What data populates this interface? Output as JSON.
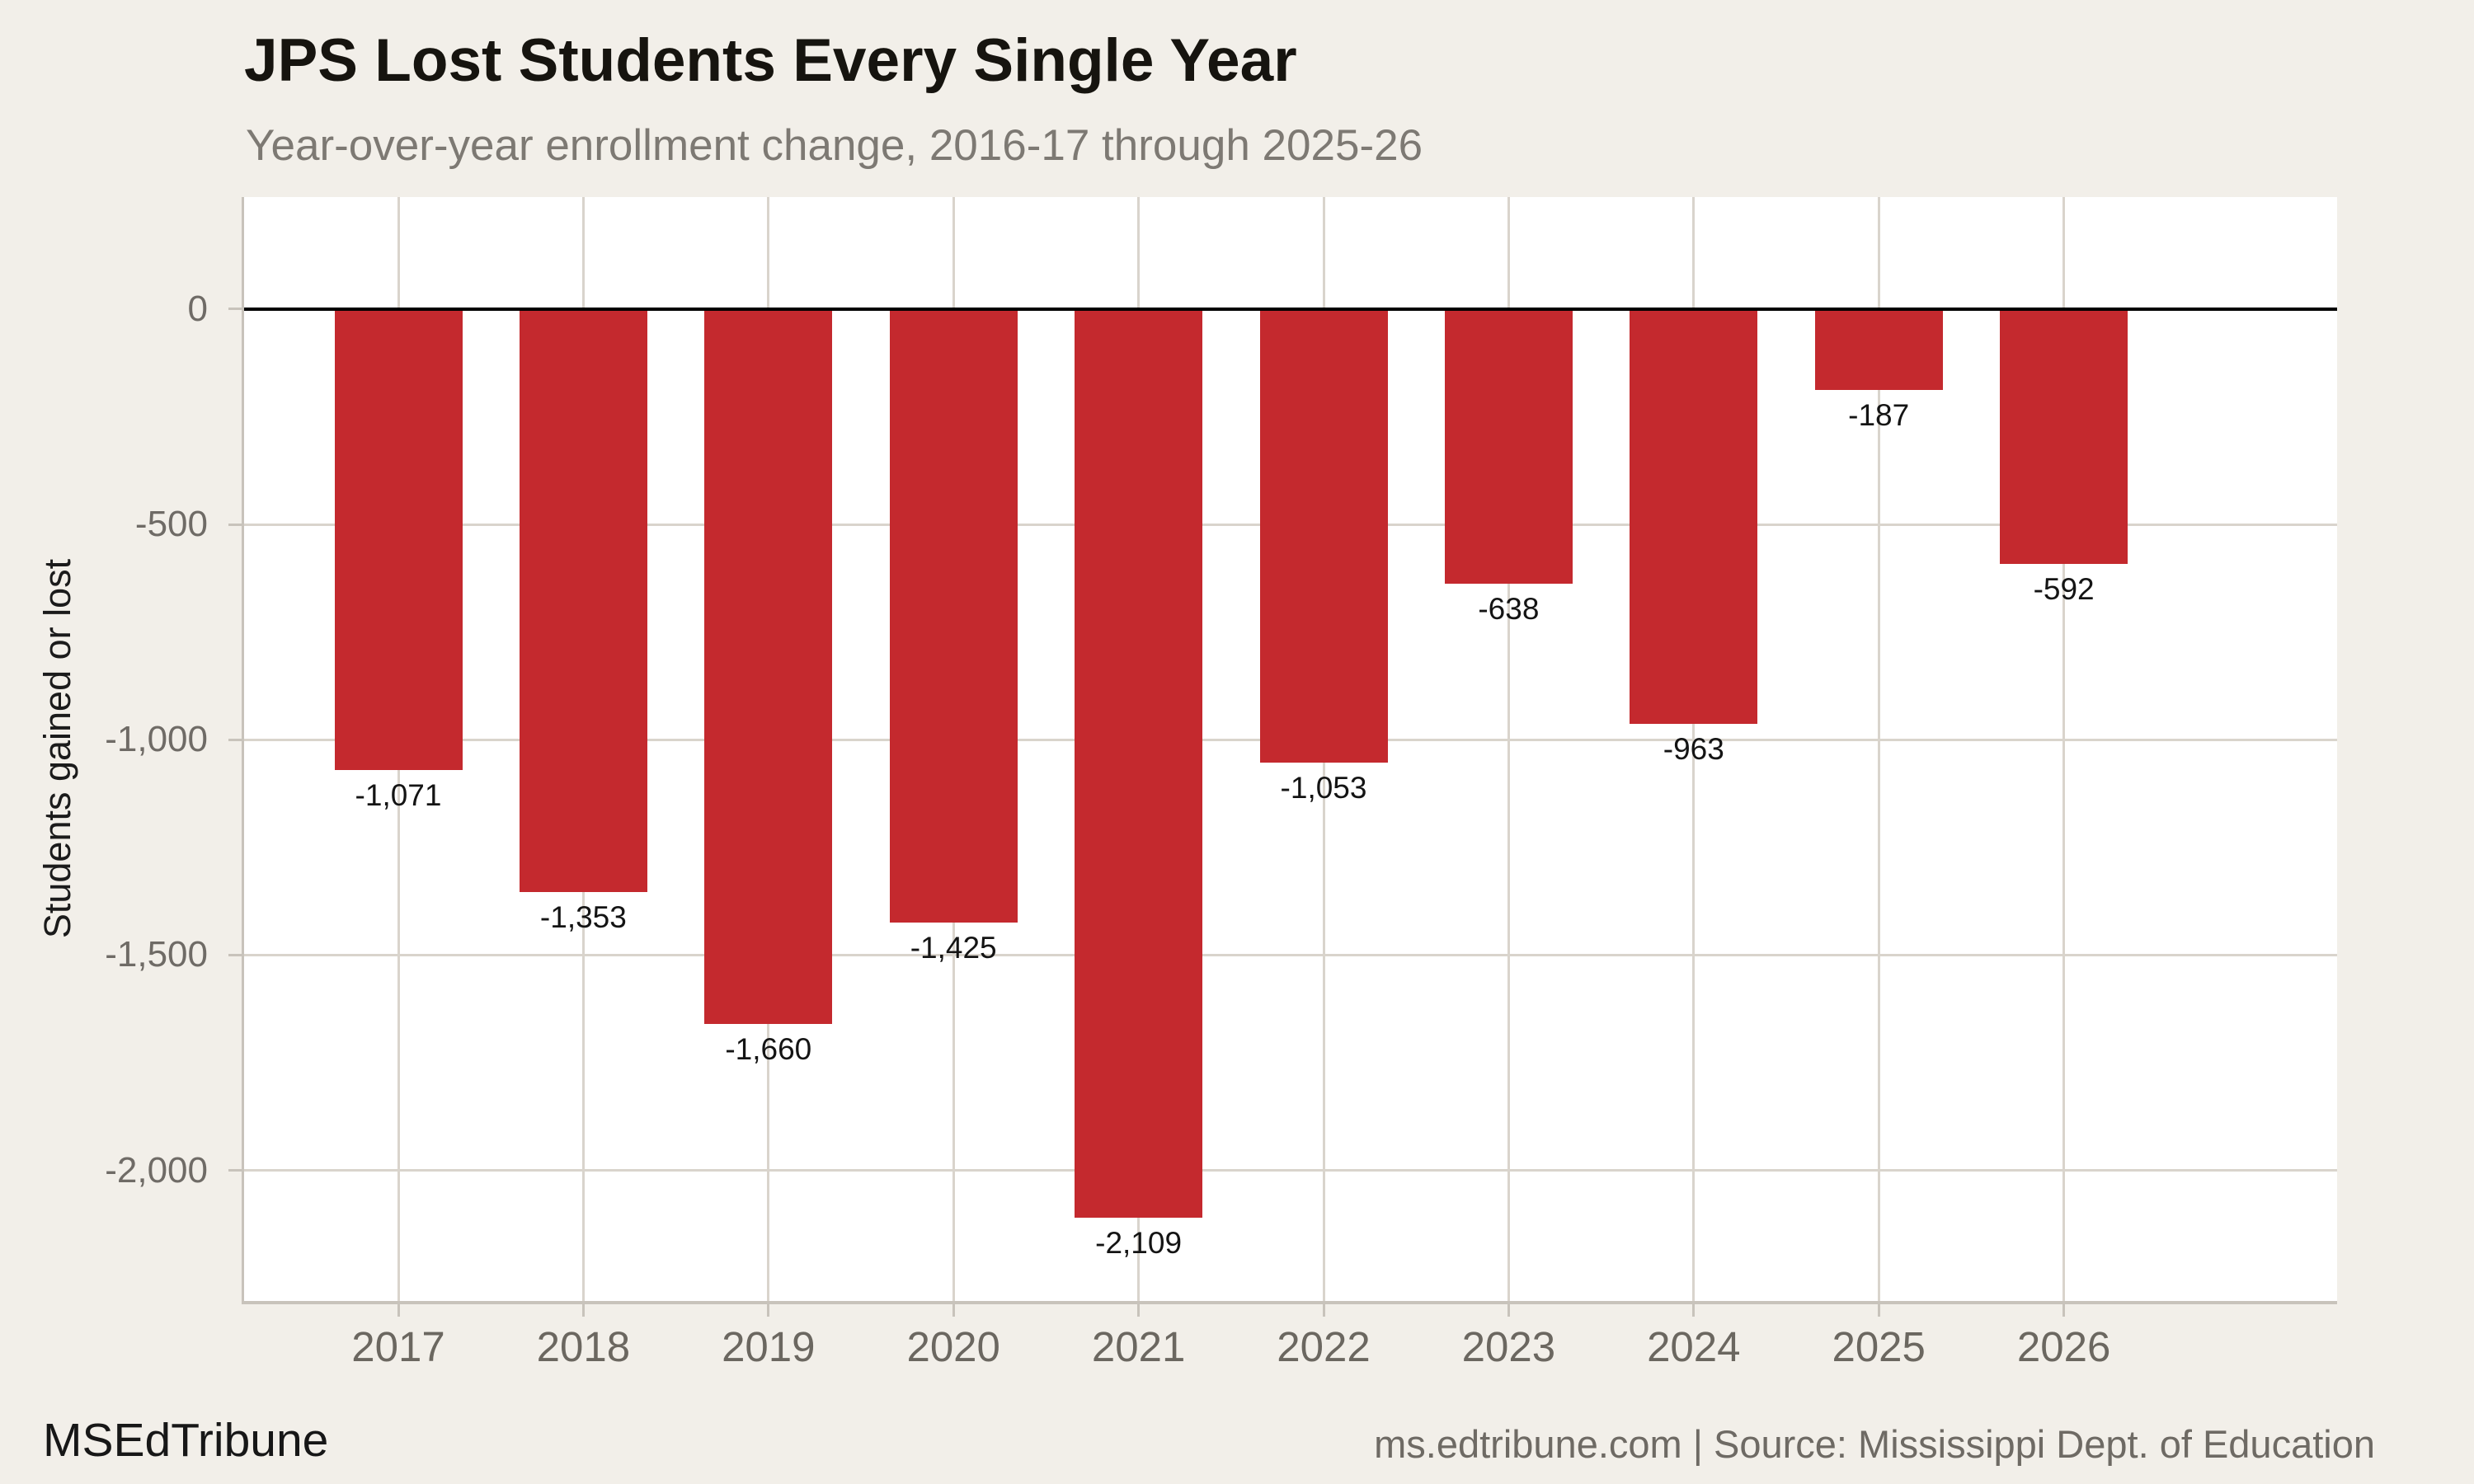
{
  "header": {
    "title": "JPS Lost Students Every Single Year",
    "subtitle": "Year-over-year enrollment change, 2016-17 through 2025-26"
  },
  "footer": {
    "brand": "MSEdTribune",
    "source": "ms.edtribune.com | Source: Mississippi Dept. of Education"
  },
  "chart_data": {
    "type": "bar",
    "title": "JPS Lost Students Every Single Year",
    "subtitle": "Year-over-year enrollment change, 2016-17 through 2025-26",
    "categories": [
      "2017",
      "2018",
      "2019",
      "2020",
      "2021",
      "2022",
      "2023",
      "2024",
      "2025",
      "2026"
    ],
    "values": [
      -1071,
      -1353,
      -1660,
      -1425,
      -2109,
      -1053,
      -638,
      -963,
      -187,
      -592
    ],
    "bar_labels": [
      "-1,071",
      "-1,353",
      "-1,660",
      "-1,425",
      "-2,109",
      "-1,053",
      "-638",
      "-963",
      "-187",
      "-592"
    ],
    "xlabel": "",
    "ylabel": "Students gained or lost",
    "ylim": [
      260,
      -2303
    ],
    "yticks": [
      {
        "value": 0,
        "label": "0"
      },
      {
        "value": -500,
        "label": "-500"
      },
      {
        "value": -1000,
        "label": "-1,000"
      },
      {
        "value": -1500,
        "label": "-1,500"
      },
      {
        "value": -2000,
        "label": "-2,000"
      }
    ],
    "grid": "on",
    "legend": "none",
    "colors": {
      "bar": "#c4292e",
      "background": "#f2efe9",
      "plot_background": "#ffffff",
      "grid": "#d9d4cc",
      "axis_line": "#c8c3bb",
      "zero_line": "#000000",
      "title": "#16140f",
      "subtitle": "#7d7973",
      "tick_label": "#6f6b66",
      "bar_label": "#141414",
      "footer_brand": "#171717",
      "footer_source": "#6e6a64"
    }
  }
}
